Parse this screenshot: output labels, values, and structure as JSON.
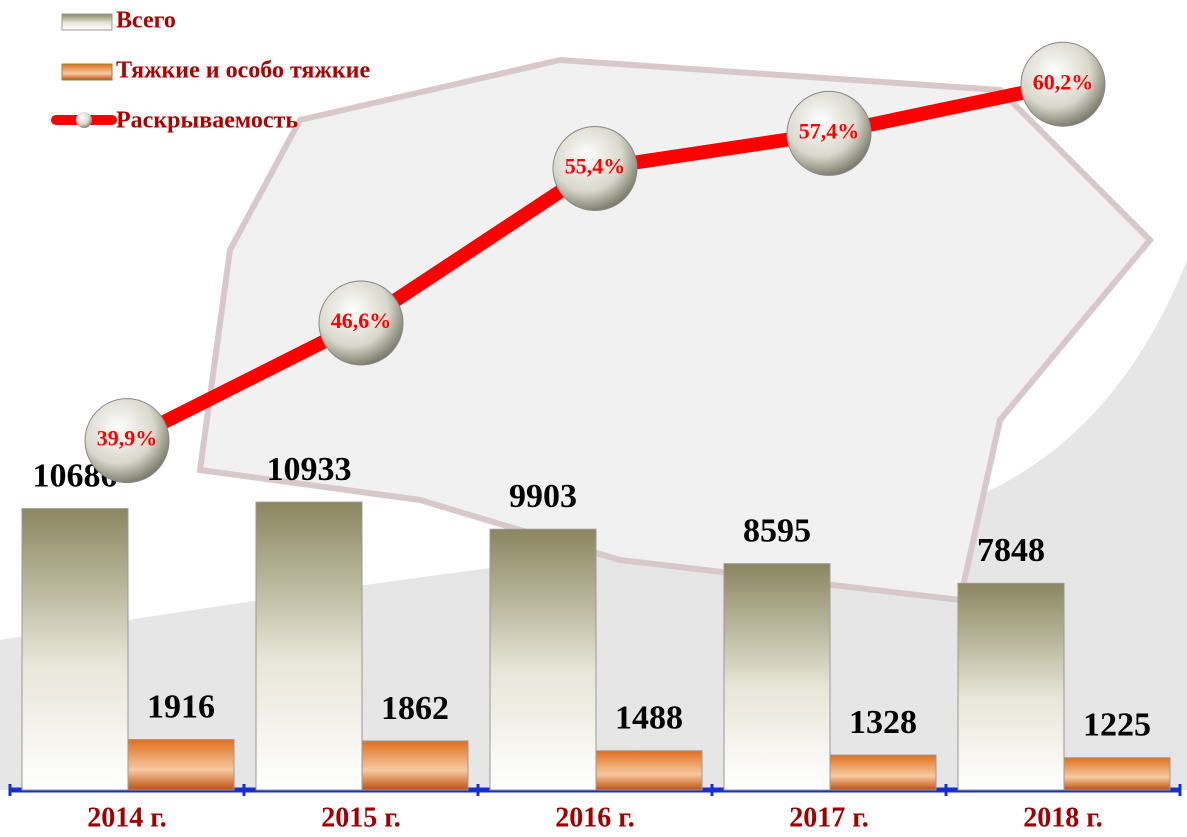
{
  "chart_data": {
    "type": "bar",
    "categories": [
      "2014 г.",
      "2015 г.",
      "2016 г.",
      "2017 г.",
      "2018 г."
    ],
    "series": [
      {
        "name": "Всего",
        "color": "#8b8660",
        "values": [
          10686,
          10933,
          9903,
          8595,
          7848
        ]
      },
      {
        "name": "Тяжкие и особо тяжкие",
        "color": "#e0701e",
        "values": [
          1916,
          1862,
          1488,
          1328,
          1225
        ]
      },
      {
        "name": "Раскрываемость",
        "color": "#ff0000",
        "type": "line",
        "axis": "y2",
        "values": [
          39.9,
          46.6,
          55.4,
          57.4,
          60.2
        ],
        "value_labels": [
          "39,9%",
          "46,6%",
          "55,4%",
          "57,4%",
          "60,2%"
        ]
      }
    ],
    "ylim": [
      0,
      30000
    ],
    "y2lim": [
      20,
      65
    ],
    "legend": "top-left"
  }
}
